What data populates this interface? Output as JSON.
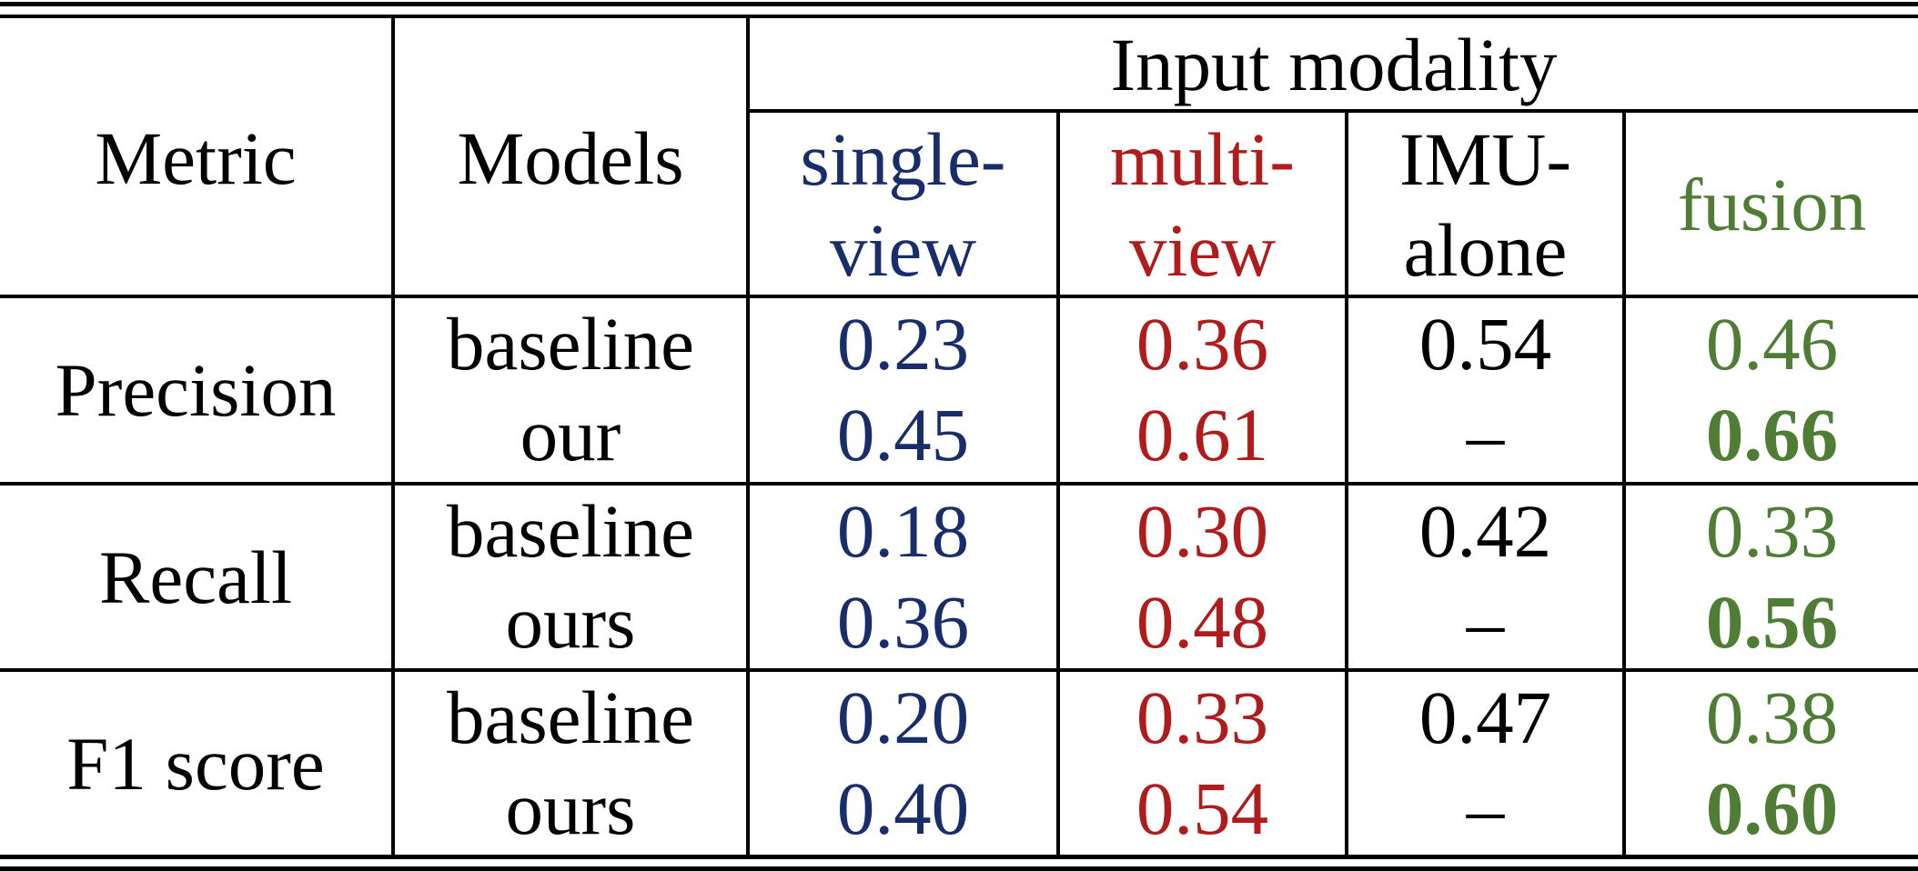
{
  "header": {
    "metric": "Metric",
    "models": "Models",
    "input_modality": "Input modality",
    "columns": [
      {
        "line1": "single-",
        "line2": "view",
        "color": "#1a2d6b"
      },
      {
        "line1": "multi-",
        "line2": "view",
        "color": "#b01b1b"
      },
      {
        "line1": "IMU-",
        "line2": "alone",
        "color": "#000000"
      },
      {
        "line1": "fusion",
        "line2": "",
        "color": "#4f7d35"
      }
    ]
  },
  "rows": [
    {
      "metric": "Precision",
      "models": [
        "baseline",
        "our"
      ],
      "single_view": [
        "0.23",
        "0.45"
      ],
      "multi_view": [
        "0.36",
        "0.61"
      ],
      "imu_alone": [
        "0.54",
        "–"
      ],
      "fusion": [
        "0.46",
        "0.66"
      ]
    },
    {
      "metric": "Recall",
      "models": [
        "baseline",
        "ours"
      ],
      "single_view": [
        "0.18",
        "0.36"
      ],
      "multi_view": [
        "0.30",
        "0.48"
      ],
      "imu_alone": [
        "0.42",
        "–"
      ],
      "fusion": [
        "0.33",
        "0.56"
      ]
    },
    {
      "metric": "F1 score",
      "models": [
        "baseline",
        "ours"
      ],
      "single_view": [
        "0.20",
        "0.40"
      ],
      "multi_view": [
        "0.33",
        "0.54"
      ],
      "imu_alone": [
        "0.47",
        "–"
      ],
      "fusion": [
        "0.38",
        "0.60"
      ]
    }
  ]
}
